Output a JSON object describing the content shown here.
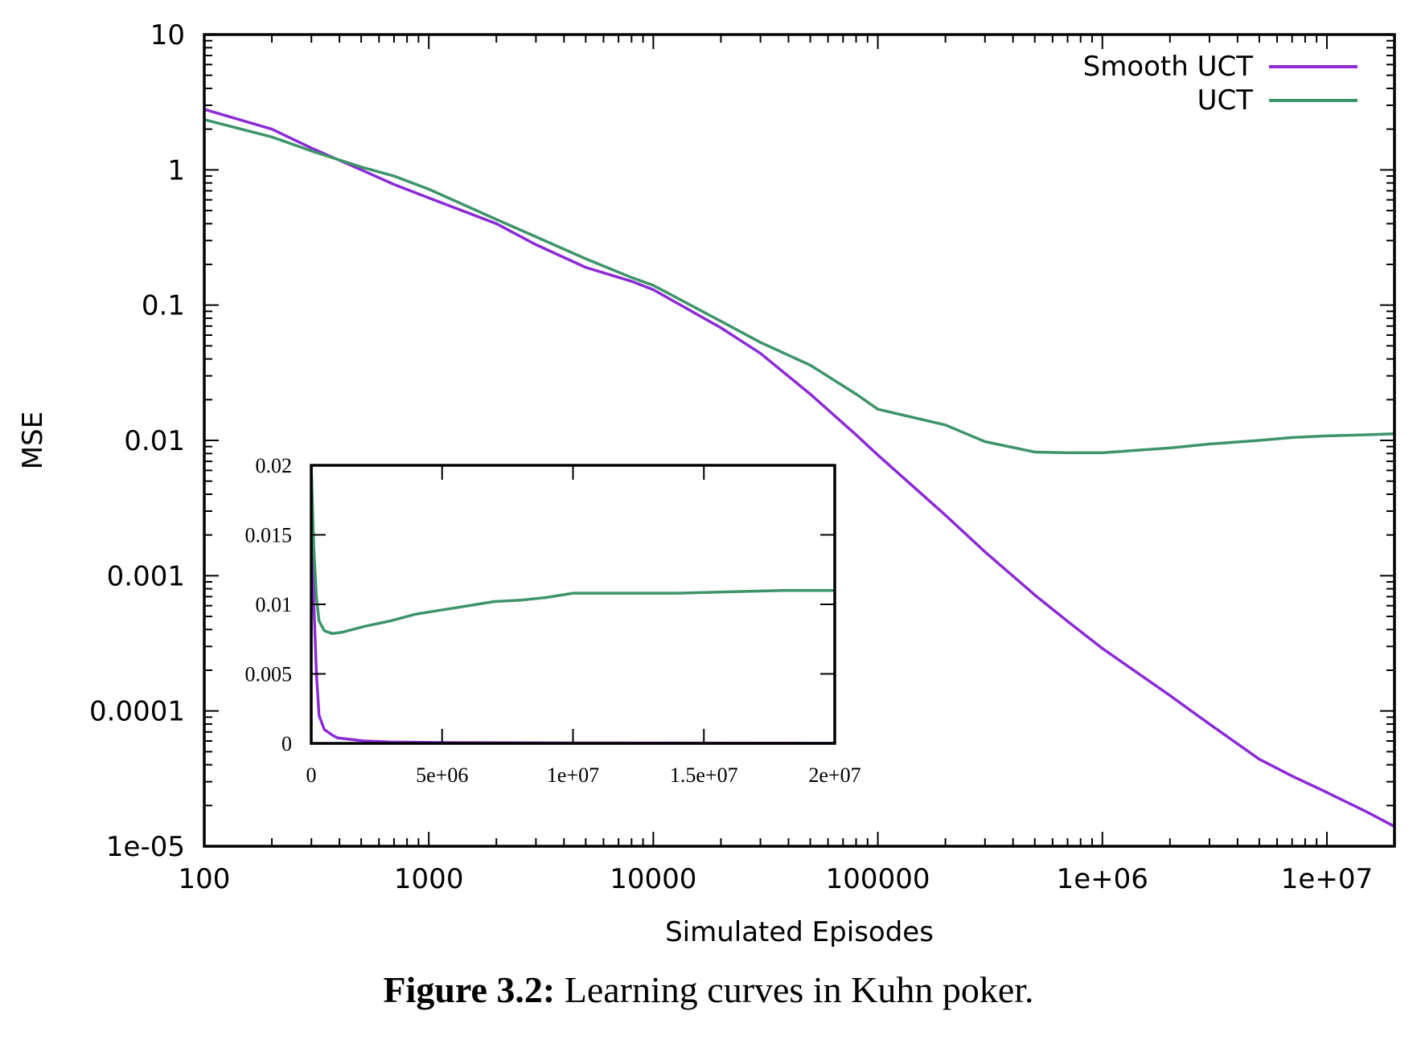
{
  "caption": {
    "label": "Figure 3.2:",
    "text": "Learning curves in Kuhn poker."
  },
  "colors": {
    "smooth_uct": "#8b2bd6",
    "uct": "#3e9469",
    "axis": "#000000"
  },
  "chart_data": [
    {
      "id": "main",
      "type": "line",
      "xlabel": "Simulated Episodes",
      "ylabel": "MSE",
      "xscale": "log",
      "yscale": "log",
      "xlim": [
        100,
        20000000
      ],
      "ylim": [
        1e-05,
        10
      ],
      "legend_position": "top-right",
      "grid": false,
      "xticks": [
        {
          "value": 100,
          "label": "100"
        },
        {
          "value": 1000,
          "label": "1000"
        },
        {
          "value": 10000,
          "label": "10000"
        },
        {
          "value": 100000,
          "label": "100000"
        },
        {
          "value": 1000000,
          "label": "1e+06"
        },
        {
          "value": 10000000,
          "label": "1e+07"
        }
      ],
      "yticks": [
        {
          "value": 10,
          "label": "10"
        },
        {
          "value": 1,
          "label": "1"
        },
        {
          "value": 0.1,
          "label": "0.1"
        },
        {
          "value": 0.01,
          "label": "0.01"
        },
        {
          "value": 0.001,
          "label": "0.001"
        },
        {
          "value": 0.0001,
          "label": "0.0001"
        },
        {
          "value": 1e-05,
          "label": "1e-05"
        }
      ],
      "series": [
        {
          "name": "Smooth UCT",
          "color": "#8b2bd6",
          "points": [
            [
              100,
              2.8
            ],
            [
              200,
              2.0
            ],
            [
              300,
              1.45
            ],
            [
              500,
              1.0
            ],
            [
              700,
              0.78
            ],
            [
              1000,
              0.62
            ],
            [
              2000,
              0.4
            ],
            [
              3000,
              0.28
            ],
            [
              5000,
              0.19
            ],
            [
              8000,
              0.15
            ],
            [
              10000,
              0.13
            ],
            [
              20000,
              0.068
            ],
            [
              30000,
              0.044
            ],
            [
              50000,
              0.022
            ],
            [
              80000,
              0.011
            ],
            [
              100000,
              0.0078
            ],
            [
              200000,
              0.0028
            ],
            [
              300000,
              0.0015
            ],
            [
              500000,
              0.00072
            ],
            [
              700000,
              0.00046
            ],
            [
              1000000,
              0.00029
            ],
            [
              2000000,
              0.00013
            ],
            [
              3000000,
              8e-05
            ],
            [
              5000000,
              4.4e-05
            ],
            [
              7000000,
              3.3e-05
            ],
            [
              10000000,
              2.5e-05
            ],
            [
              15000000,
              1.8e-05
            ],
            [
              20000000,
              1.4e-05
            ]
          ]
        },
        {
          "name": "UCT",
          "color": "#3e9469",
          "points": [
            [
              100,
              2.35
            ],
            [
              200,
              1.75
            ],
            [
              300,
              1.38
            ],
            [
              500,
              1.05
            ],
            [
              700,
              0.9
            ],
            [
              1000,
              0.72
            ],
            [
              2000,
              0.43
            ],
            [
              3000,
              0.32
            ],
            [
              5000,
              0.22
            ],
            [
              8000,
              0.16
            ],
            [
              10000,
              0.14
            ],
            [
              20000,
              0.076
            ],
            [
              30000,
              0.053
            ],
            [
              50000,
              0.036
            ],
            [
              80000,
              0.022
            ],
            [
              100000,
              0.017
            ],
            [
              200000,
              0.013
            ],
            [
              300000,
              0.0098
            ],
            [
              500000,
              0.0082
            ],
            [
              700000,
              0.0081
            ],
            [
              1000000,
              0.0081
            ],
            [
              2000000,
              0.0088
            ],
            [
              3000000,
              0.0094
            ],
            [
              5000000,
              0.01
            ],
            [
              7000000,
              0.0105
            ],
            [
              10000000,
              0.0108
            ],
            [
              15000000,
              0.011
            ],
            [
              20000000,
              0.0112
            ]
          ]
        }
      ]
    },
    {
      "id": "inset",
      "type": "line",
      "xscale": "linear",
      "yscale": "linear",
      "xlim": [
        0,
        20000000
      ],
      "ylim": [
        0,
        0.02
      ],
      "xticks": [
        {
          "value": 0,
          "label": "0"
        },
        {
          "value": 5000000,
          "label": "5e+06"
        },
        {
          "value": 10000000,
          "label": "1e+07"
        },
        {
          "value": 15000000,
          "label": "1.5e+07"
        },
        {
          "value": 20000000,
          "label": "2e+07"
        }
      ],
      "yticks": [
        {
          "value": 0,
          "label": "0"
        },
        {
          "value": 0.005,
          "label": "0.005"
        },
        {
          "value": 0.01,
          "label": "0.01"
        },
        {
          "value": 0.015,
          "label": "0.015"
        },
        {
          "value": 0.02,
          "label": "0.02"
        }
      ],
      "series": [
        {
          "name": "Smooth UCT",
          "color": "#8b2bd6",
          "points": [
            [
              0,
              0.02
            ],
            [
              100000,
              0.01
            ],
            [
              200000,
              0.005
            ],
            [
              300000,
              0.002
            ],
            [
              500000,
              0.001
            ],
            [
              800000,
              0.0006
            ],
            [
              1000000,
              0.0004
            ],
            [
              2000000,
              0.00018
            ],
            [
              3000000,
              0.0001
            ],
            [
              5000000,
              6e-05
            ],
            [
              10000000,
              3e-05
            ],
            [
              15000000,
              2e-05
            ],
            [
              20000000,
              1.4e-05
            ]
          ]
        },
        {
          "name": "UCT",
          "color": "#3e9469",
          "points": [
            [
              0,
              0.02
            ],
            [
              100000,
              0.014
            ],
            [
              200000,
              0.0105
            ],
            [
              300000,
              0.0088
            ],
            [
              500000,
              0.0081
            ],
            [
              800000,
              0.0079
            ],
            [
              1200000,
              0.008
            ],
            [
              2000000,
              0.0084
            ],
            [
              3000000,
              0.0088
            ],
            [
              4000000,
              0.0093
            ],
            [
              5000000,
              0.0096
            ],
            [
              6000000,
              0.0099
            ],
            [
              7000000,
              0.0102
            ],
            [
              8000000,
              0.0103
            ],
            [
              9000000,
              0.0105
            ],
            [
              10000000,
              0.0108
            ],
            [
              12000000,
              0.0108
            ],
            [
              14000000,
              0.0108
            ],
            [
              16000000,
              0.0109
            ],
            [
              18000000,
              0.011
            ],
            [
              20000000,
              0.011
            ]
          ]
        }
      ]
    }
  ]
}
